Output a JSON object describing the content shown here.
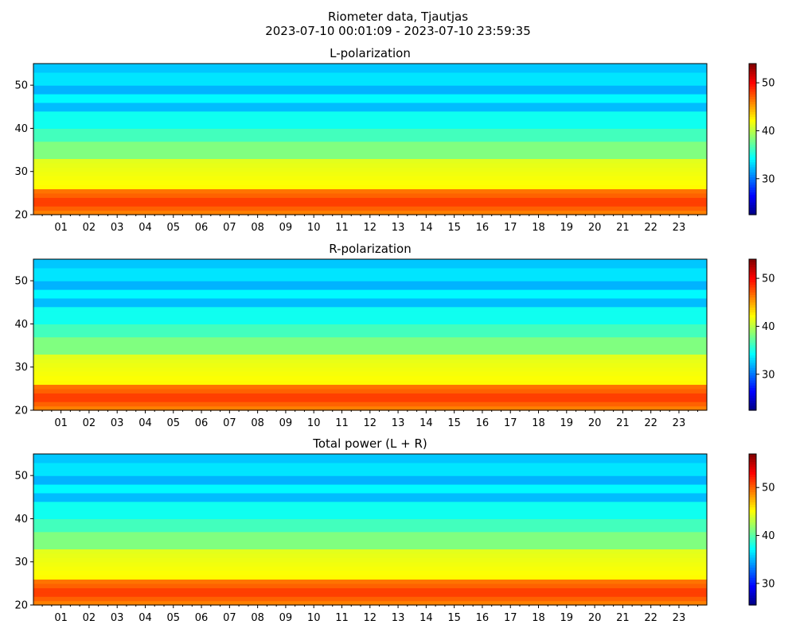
{
  "figure": {
    "title": "Riometer data, Tjautjas",
    "subtitle": "2023-07-10 00:01:09 - 2023-07-10 23:59:35",
    "colormap": "jet"
  },
  "chart_data": [
    {
      "type": "heatmap",
      "title": "L-polarization",
      "x_tick_labels": [
        "01",
        "02",
        "03",
        "04",
        "05",
        "06",
        "07",
        "08",
        "09",
        "10",
        "11",
        "12",
        "13",
        "14",
        "15",
        "16",
        "17",
        "18",
        "19",
        "20",
        "21",
        "22",
        "23"
      ],
      "xlim": [
        "2023-07-10 00:01:09",
        "2023-07-10 23:59:35"
      ],
      "y_ticks": [
        20,
        30,
        40,
        50
      ],
      "ylim": [
        20,
        55
      ],
      "colorbar": {
        "ticks": [
          30,
          40,
          50
        ],
        "range": [
          22.5,
          54
        ]
      },
      "value_range": [
        33,
        52
      ]
    },
    {
      "type": "heatmap",
      "title": "R-polarization",
      "x_tick_labels": [
        "01",
        "02",
        "03",
        "04",
        "05",
        "06",
        "07",
        "08",
        "09",
        "10",
        "11",
        "12",
        "13",
        "14",
        "15",
        "16",
        "17",
        "18",
        "19",
        "20",
        "21",
        "22",
        "23"
      ],
      "xlim": [
        "2023-07-10 00:01:09",
        "2023-07-10 23:59:35"
      ],
      "y_ticks": [
        20,
        30,
        40,
        50
      ],
      "ylim": [
        20,
        55
      ],
      "colorbar": {
        "ticks": [
          30,
          40,
          50
        ],
        "range": [
          22.5,
          54
        ]
      },
      "value_range": [
        33,
        52
      ]
    },
    {
      "type": "heatmap",
      "title": "Total power (L + R)",
      "x_tick_labels": [
        "01",
        "02",
        "03",
        "04",
        "05",
        "06",
        "07",
        "08",
        "09",
        "10",
        "11",
        "12",
        "13",
        "14",
        "15",
        "16",
        "17",
        "18",
        "19",
        "20",
        "21",
        "22",
        "23"
      ],
      "xlim": [
        "2023-07-10 00:01:09",
        "2023-07-10 23:59:35"
      ],
      "y_ticks": [
        20,
        30,
        40,
        50
      ],
      "ylim": [
        20,
        55
      ],
      "colorbar": {
        "ticks": [
          30,
          40,
          50
        ],
        "range": [
          25.5,
          57
        ]
      },
      "value_range": [
        36,
        55
      ]
    }
  ]
}
